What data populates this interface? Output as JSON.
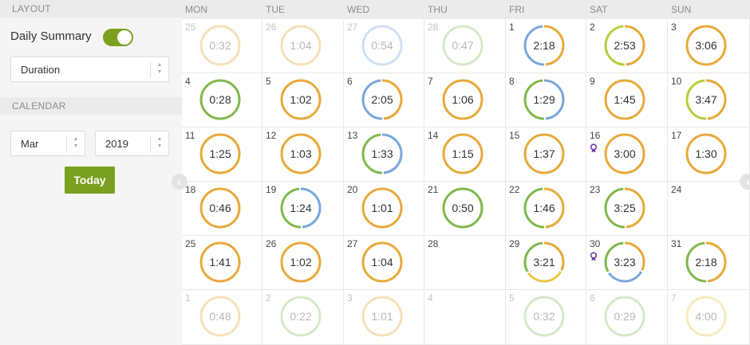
{
  "sidebar": {
    "layout_header": "LAYOUT",
    "summary_label": "Daily Summary",
    "summary_on": true,
    "metric_value": "Duration",
    "calendar_header": "CALENDAR",
    "month_value": "Mar",
    "year_value": "2019",
    "today_label": "Today"
  },
  "calendar": {
    "days": [
      "MON",
      "TUE",
      "WED",
      "THU",
      "FRI",
      "SAT",
      "SUN"
    ],
    "weeks": [
      [
        {
          "d": "25",
          "t": "0:32",
          "muted": true,
          "c": [
            "#e8a93a"
          ]
        },
        {
          "d": "26",
          "t": "1:04",
          "muted": true,
          "c": [
            "#e8a93a"
          ]
        },
        {
          "d": "27",
          "t": "0:54",
          "muted": true,
          "c": [
            "#7aa6dc"
          ]
        },
        {
          "d": "28",
          "t": "0:47",
          "muted": true,
          "c": [
            "#8bbf6a"
          ]
        },
        {
          "d": "1",
          "t": "2:18",
          "c": [
            "#e8a93a",
            "#7aa6dc"
          ]
        },
        {
          "d": "2",
          "t": "2:53",
          "c": [
            "#e8a93a",
            "#b9cc3a"
          ]
        },
        {
          "d": "3",
          "t": "3:06",
          "c": [
            "#e8a93a"
          ]
        }
      ],
      [
        {
          "d": "4",
          "t": "0:28",
          "c": [
            "#7fb84a"
          ]
        },
        {
          "d": "5",
          "t": "1:02",
          "c": [
            "#e8a93a"
          ]
        },
        {
          "d": "6",
          "t": "2:05",
          "c": [
            "#e8a93a",
            "#7aa6dc"
          ]
        },
        {
          "d": "7",
          "t": "1:06",
          "c": [
            "#e8a93a"
          ]
        },
        {
          "d": "8",
          "t": "1:29",
          "c": [
            "#7aa6dc",
            "#7fb84a"
          ]
        },
        {
          "d": "9",
          "t": "1:45",
          "c": [
            "#e8a93a"
          ]
        },
        {
          "d": "10",
          "t": "3:47",
          "c": [
            "#e8a93a",
            "#b9cc3a"
          ]
        }
      ],
      [
        {
          "d": "11",
          "t": "1:25",
          "c": [
            "#e8a93a"
          ]
        },
        {
          "d": "12",
          "t": "1:03",
          "c": [
            "#e8a93a"
          ]
        },
        {
          "d": "13",
          "t": "1:33",
          "c": [
            "#7aa6dc",
            "#7fb84a"
          ]
        },
        {
          "d": "14",
          "t": "1:15",
          "c": [
            "#e8a93a"
          ]
        },
        {
          "d": "15",
          "t": "1:37",
          "c": [
            "#e8a93a"
          ]
        },
        {
          "d": "16",
          "t": "3:00",
          "c": [
            "#e8a93a"
          ],
          "badge": "award-icon"
        },
        {
          "d": "17",
          "t": "1:30",
          "c": [
            "#e8a93a"
          ]
        }
      ],
      [
        {
          "d": "18",
          "t": "0:46",
          "c": [
            "#e8a93a"
          ]
        },
        {
          "d": "19",
          "t": "1:24",
          "c": [
            "#7aa6dc",
            "#7fb84a"
          ]
        },
        {
          "d": "20",
          "t": "1:01",
          "c": [
            "#e8a93a"
          ]
        },
        {
          "d": "21",
          "t": "0:50",
          "c": [
            "#7fb84a"
          ]
        },
        {
          "d": "22",
          "t": "1:46",
          "c": [
            "#e8a93a",
            "#7fb84a"
          ]
        },
        {
          "d": "23",
          "t": "3:25",
          "c": [
            "#e8a93a",
            "#7fb84a"
          ]
        },
        {
          "d": "24"
        }
      ],
      [
        {
          "d": "25",
          "t": "1:41",
          "c": [
            "#e8a93a"
          ]
        },
        {
          "d": "26",
          "t": "1:02",
          "c": [
            "#e8a93a"
          ]
        },
        {
          "d": "27",
          "t": "1:04",
          "c": [
            "#e8a93a"
          ]
        },
        {
          "d": "28"
        },
        {
          "d": "29",
          "t": "3:21",
          "c": [
            "#e8a93a",
            "#e8c84a",
            "#7fb84a"
          ]
        },
        {
          "d": "30",
          "t": "3:23",
          "c": [
            "#e8a93a",
            "#7aa6dc",
            "#7fb84a"
          ],
          "badge": "award-icon"
        },
        {
          "d": "31",
          "t": "2:18",
          "c": [
            "#e8a93a",
            "#7fb84a"
          ]
        }
      ],
      [
        {
          "d": "1",
          "t": "0:48",
          "muted": true,
          "c": [
            "#e8a93a"
          ]
        },
        {
          "d": "2",
          "t": "0:22",
          "muted": true,
          "c": [
            "#8bbf6a"
          ]
        },
        {
          "d": "3",
          "t": "1:01",
          "muted": true,
          "c": [
            "#e8a93a"
          ]
        },
        {
          "d": "4",
          "muted": true
        },
        {
          "d": "5",
          "t": "0:32",
          "muted": true,
          "c": [
            "#8bbf6a"
          ]
        },
        {
          "d": "6",
          "t": "0:29",
          "muted": true,
          "c": [
            "#8bbf6a"
          ]
        },
        {
          "d": "7",
          "t": "4:00",
          "muted": true,
          "c": [
            "#e8c84a"
          ]
        }
      ]
    ]
  },
  "icons": {
    "prev": "chevron-left-icon",
    "next": "chevron-right-icon",
    "badge": "award-icon"
  }
}
